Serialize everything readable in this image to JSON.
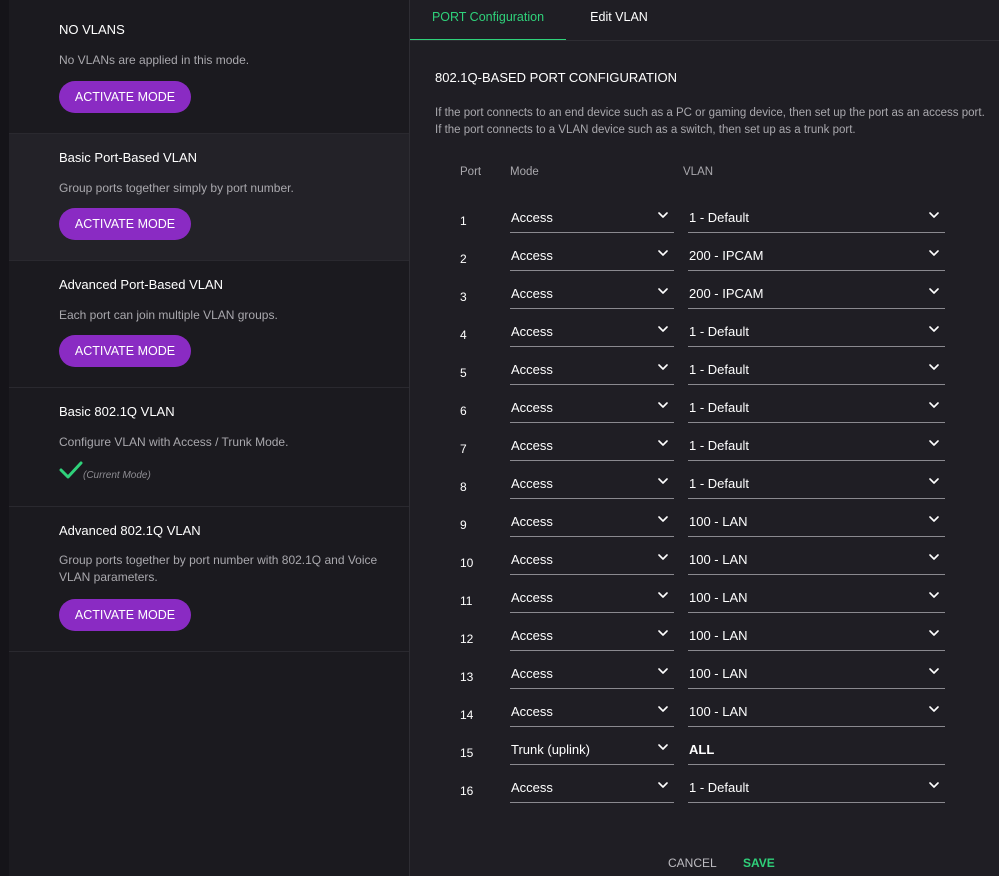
{
  "left_panel": {
    "modes": [
      {
        "title": "NO VLANS",
        "description": "No VLANs are applied in this mode.",
        "button": "ACTIVATE MODE",
        "current": false
      },
      {
        "title": "Basic Port-Based VLAN",
        "description": "Group ports together simply by port number.",
        "button": "ACTIVATE MODE",
        "current": false
      },
      {
        "title": "Advanced Port-Based VLAN",
        "description": "Each port can join multiple VLAN groups.",
        "button": "ACTIVATE MODE",
        "current": false
      },
      {
        "title": "Basic 802.1Q VLAN",
        "description": "Configure VLAN with Access / Trunk Mode.",
        "current_label": "(Current Mode)",
        "current": true
      },
      {
        "title": "Advanced 802.1Q VLAN",
        "description": "Group ports together by port number with 802.1Q and Voice VLAN parameters.",
        "button": "ACTIVATE MODE",
        "current": false
      }
    ]
  },
  "tabs": [
    {
      "label": "PORT Configuration",
      "active": true
    },
    {
      "label": "Edit VLAN",
      "active": false
    }
  ],
  "section": {
    "title": "802.1Q-BASED PORT CONFIGURATION",
    "description": "If the port connects to an end device such as a PC or gaming device, then set up the port as an access port. If the port connects to a VLAN device such as a switch, then set up as a trunk port."
  },
  "table": {
    "headers": {
      "port": "Port",
      "mode": "Mode",
      "vlan": "VLAN"
    },
    "rows": [
      {
        "port": "1",
        "mode": "Access",
        "vlan": "1 - Default"
      },
      {
        "port": "2",
        "mode": "Access",
        "vlan": "200 - IPCAM"
      },
      {
        "port": "3",
        "mode": "Access",
        "vlan": "200 - IPCAM"
      },
      {
        "port": "4",
        "mode": "Access",
        "vlan": "1 - Default"
      },
      {
        "port": "5",
        "mode": "Access",
        "vlan": "1 - Default"
      },
      {
        "port": "6",
        "mode": "Access",
        "vlan": "1 - Default"
      },
      {
        "port": "7",
        "mode": "Access",
        "vlan": "1 - Default"
      },
      {
        "port": "8",
        "mode": "Access",
        "vlan": "1 - Default"
      },
      {
        "port": "9",
        "mode": "Access",
        "vlan": "100 - LAN"
      },
      {
        "port": "10",
        "mode": "Access",
        "vlan": "100 - LAN"
      },
      {
        "port": "11",
        "mode": "Access",
        "vlan": "100 - LAN"
      },
      {
        "port": "12",
        "mode": "Access",
        "vlan": "100 - LAN"
      },
      {
        "port": "13",
        "mode": "Access",
        "vlan": "100 - LAN"
      },
      {
        "port": "14",
        "mode": "Access",
        "vlan": "100 - LAN"
      },
      {
        "port": "15",
        "mode": "Trunk (uplink)",
        "vlan": "ALL",
        "vlan_dropdown": false
      },
      {
        "port": "16",
        "mode": "Access",
        "vlan": "1 - Default"
      }
    ]
  },
  "footer": {
    "cancel": "CANCEL",
    "save": "SAVE"
  },
  "colors": {
    "accent_purple": "#8a2bc3",
    "accent_green": "#2fd17a",
    "background": "#1b1a1f",
    "panel": "#1f1e24"
  }
}
